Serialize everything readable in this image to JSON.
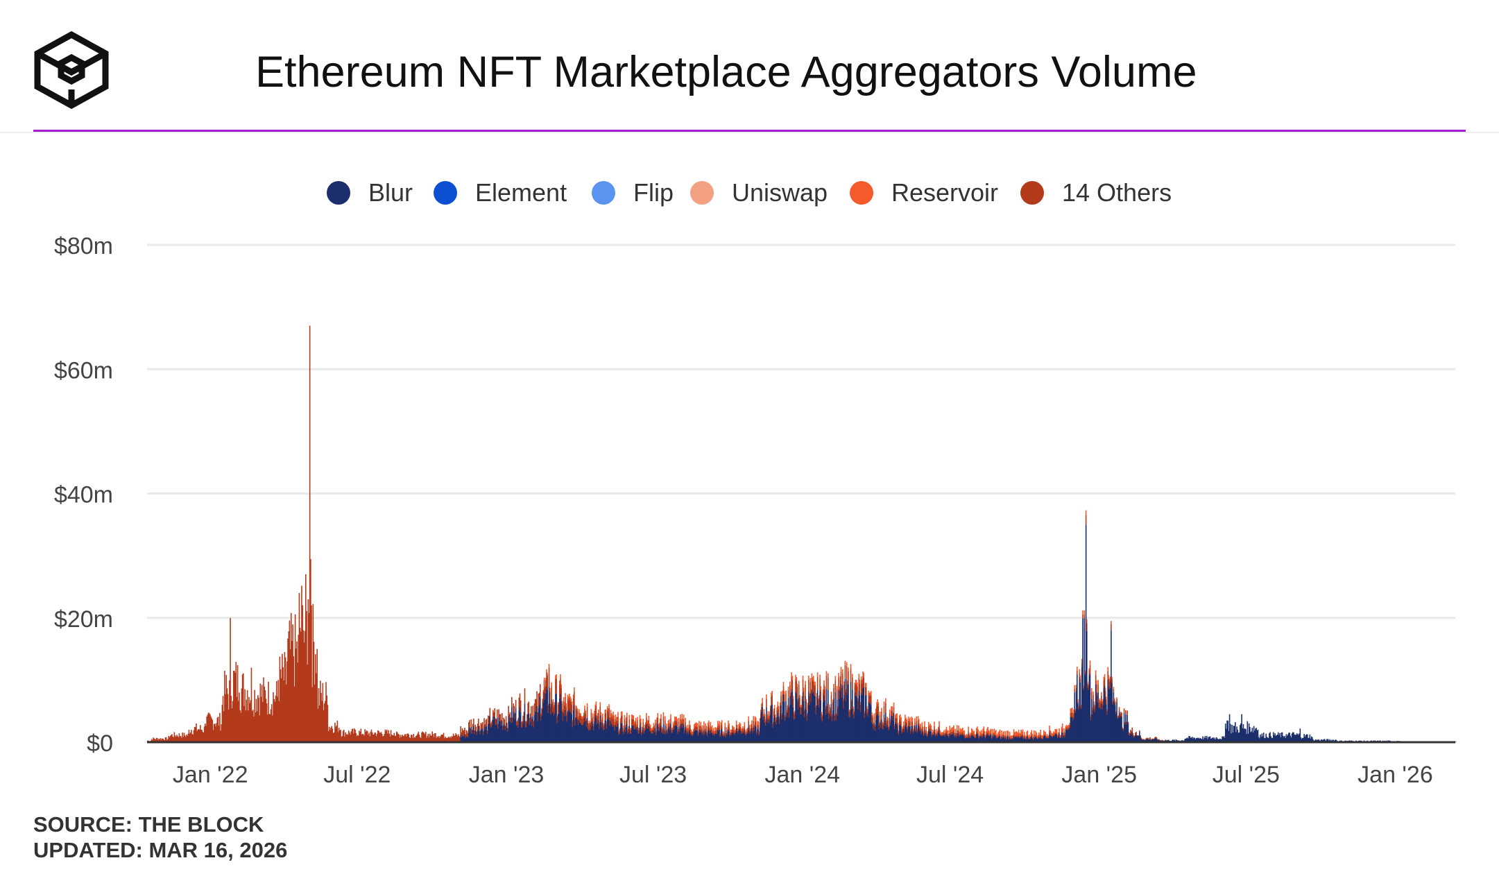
{
  "header": {
    "title": "Ethereum NFT Marketplace Aggregators Volume",
    "logo_icon": "the-block-cube-logo-icon"
  },
  "colors": {
    "accent_rule": "#a020d0",
    "blur": "#1c2e6b",
    "element": "#0d4fd1",
    "flip": "#5b93f0",
    "uniswap": "#f4a183",
    "reservoir": "#f45a2b",
    "others": "#b33a1b"
  },
  "legend": [
    {
      "label": "Blur",
      "color": "#1c2e6b"
    },
    {
      "label": "Element",
      "color": "#0d4fd1"
    },
    {
      "label": "Flip",
      "color": "#5b93f0"
    },
    {
      "label": "Uniswap",
      "color": "#f4a183"
    },
    {
      "label": "Reservoir",
      "color": "#f45a2b"
    },
    {
      "label": "14 Others",
      "color": "#b33a1b"
    }
  ],
  "footer": {
    "source": "SOURCE: THE BLOCK",
    "updated": "UPDATED: MAR 16, 2026"
  },
  "chart_data": {
    "type": "bar",
    "stacked": true,
    "title": "Ethereum NFT Marketplace Aggregators Volume",
    "xlabel": "",
    "ylabel": "",
    "ylim": [
      0,
      80
    ],
    "y_unit": "$m",
    "x_range": [
      "2021-10-15",
      "2026-03-16"
    ],
    "y_ticks": [
      {
        "value": 0,
        "label": "$0"
      },
      {
        "value": 20,
        "label": "$20m"
      },
      {
        "value": 40,
        "label": "$40m"
      },
      {
        "value": 60,
        "label": "$60m"
      },
      {
        "value": 80,
        "label": "$80m"
      }
    ],
    "x_ticks": [
      {
        "date": "2022-01-01",
        "label": "Jan '22"
      },
      {
        "date": "2022-07-01",
        "label": "Jul '22"
      },
      {
        "date": "2023-01-01",
        "label": "Jan '23"
      },
      {
        "date": "2023-07-01",
        "label": "Jul '23"
      },
      {
        "date": "2024-01-01",
        "label": "Jan '24"
      },
      {
        "date": "2024-07-01",
        "label": "Jul '24"
      },
      {
        "date": "2025-01-01",
        "label": "Jan '25"
      },
      {
        "date": "2025-07-01",
        "label": "Jul '25"
      },
      {
        "date": "2026-01-01",
        "label": "Jan '26"
      }
    ],
    "grid": true,
    "legend_position": "top",
    "series": [
      {
        "name": "Blur",
        "color": "#1c2e6b",
        "points": [
          [
            "2022-11-15",
            2
          ],
          [
            "2022-12-10",
            3
          ],
          [
            "2023-01-05",
            4
          ],
          [
            "2023-02-10",
            6
          ],
          [
            "2023-02-22",
            9
          ],
          [
            "2023-03-10",
            5
          ],
          [
            "2023-04-10",
            4
          ],
          [
            "2023-05-10",
            3
          ],
          [
            "2023-06-10",
            2
          ],
          [
            "2023-07-05",
            3
          ],
          [
            "2023-08-10",
            2
          ],
          [
            "2023-09-10",
            1.5
          ],
          [
            "2023-10-10",
            1.5
          ],
          [
            "2023-11-10",
            4
          ],
          [
            "2023-12-05",
            6
          ],
          [
            "2023-12-25",
            7
          ],
          [
            "2024-01-20",
            6
          ],
          [
            "2024-02-15",
            7
          ],
          [
            "2024-03-05",
            8
          ],
          [
            "2024-03-25",
            6
          ],
          [
            "2024-04-25",
            3
          ],
          [
            "2024-05-25",
            2
          ],
          [
            "2024-06-25",
            1.5
          ],
          [
            "2024-07-25",
            1
          ],
          [
            "2024-08-25",
            1
          ],
          [
            "2024-09-25",
            0.7
          ],
          [
            "2024-10-25",
            1
          ],
          [
            "2024-11-20",
            2
          ],
          [
            "2024-12-01",
            8
          ],
          [
            "2024-12-10",
            12
          ],
          [
            "2024-12-15",
            35
          ],
          [
            "2024-12-20",
            11
          ],
          [
            "2025-01-05",
            6
          ],
          [
            "2025-01-15",
            18
          ],
          [
            "2025-01-25",
            5
          ],
          [
            "2025-02-05",
            3
          ],
          [
            "2025-02-20",
            1
          ],
          [
            "2025-03-15",
            0.4
          ],
          [
            "2025-04-15",
            0.3
          ],
          [
            "2025-06-05",
            3
          ],
          [
            "2025-06-10",
            4.5
          ],
          [
            "2025-06-20",
            2
          ],
          [
            "2025-06-25",
            4.5
          ],
          [
            "2025-07-15",
            2
          ],
          [
            "2025-08-20",
            1
          ],
          [
            "2025-09-05",
            2.2
          ],
          [
            "2025-09-20",
            0.8
          ],
          [
            "2025-10-20",
            0.3
          ],
          [
            "2025-11-20",
            0.2
          ],
          [
            "2026-01-05",
            0.2
          ],
          [
            "2026-03-10",
            0.1
          ]
        ]
      },
      {
        "name": "14 Others",
        "color": "#b33a1b",
        "points": [
          [
            "2021-10-20",
            0.5
          ],
          [
            "2021-11-10",
            1
          ],
          [
            "2021-12-05",
            2
          ],
          [
            "2021-12-25",
            3
          ],
          [
            "2022-01-15",
            6
          ],
          [
            "2022-01-25",
            20
          ],
          [
            "2022-02-05",
            8
          ],
          [
            "2022-02-20",
            12
          ],
          [
            "2022-03-10",
            7
          ],
          [
            "2022-03-25",
            10
          ],
          [
            "2022-04-05",
            13
          ],
          [
            "2022-04-20",
            24
          ],
          [
            "2022-04-25",
            18
          ],
          [
            "2022-05-01",
            23
          ],
          [
            "2022-05-03",
            67
          ],
          [
            "2022-05-05",
            22
          ],
          [
            "2022-05-12",
            15
          ],
          [
            "2022-05-25",
            6
          ],
          [
            "2022-06-10",
            2
          ],
          [
            "2022-07-15",
            1.5
          ],
          [
            "2022-08-15",
            1.5
          ],
          [
            "2022-09-15",
            1.2
          ],
          [
            "2022-10-15",
            1.5
          ],
          [
            "2022-11-10",
            1
          ],
          [
            "2022-12-15",
            1
          ],
          [
            "2023-01-15",
            1.5
          ],
          [
            "2023-02-22",
            3
          ],
          [
            "2023-03-15",
            1.5
          ],
          [
            "2023-04-15",
            1.5
          ],
          [
            "2023-05-15",
            1
          ],
          [
            "2023-06-15",
            0.8
          ],
          [
            "2023-07-15",
            0.8
          ],
          [
            "2023-08-15",
            0.6
          ],
          [
            "2023-09-15",
            0.5
          ],
          [
            "2023-10-15",
            0.5
          ],
          [
            "2023-11-15",
            1
          ],
          [
            "2023-12-15",
            1.5
          ],
          [
            "2024-01-15",
            1.5
          ],
          [
            "2024-02-15",
            1.5
          ],
          [
            "2024-03-15",
            2
          ],
          [
            "2024-04-15",
            1
          ],
          [
            "2024-05-15",
            0.6
          ],
          [
            "2024-06-15",
            0.4
          ],
          [
            "2024-07-15",
            0.3
          ],
          [
            "2024-08-15",
            0.3
          ],
          [
            "2024-09-15",
            0.2
          ],
          [
            "2024-10-15",
            0.2
          ],
          [
            "2024-11-15",
            0.3
          ],
          [
            "2024-12-15",
            1.5
          ],
          [
            "2025-01-15",
            1
          ],
          [
            "2025-02-15",
            0.4
          ],
          [
            "2025-03-15",
            0.1
          ]
        ]
      },
      {
        "name": "Reservoir",
        "color": "#f45a2b",
        "points": [
          [
            "2023-02-22",
            0.6
          ],
          [
            "2023-12-25",
            0.5
          ],
          [
            "2024-03-05",
            0.5
          ],
          [
            "2024-12-15",
            0.8
          ],
          [
            "2025-01-15",
            0.5
          ]
        ]
      }
    ]
  }
}
